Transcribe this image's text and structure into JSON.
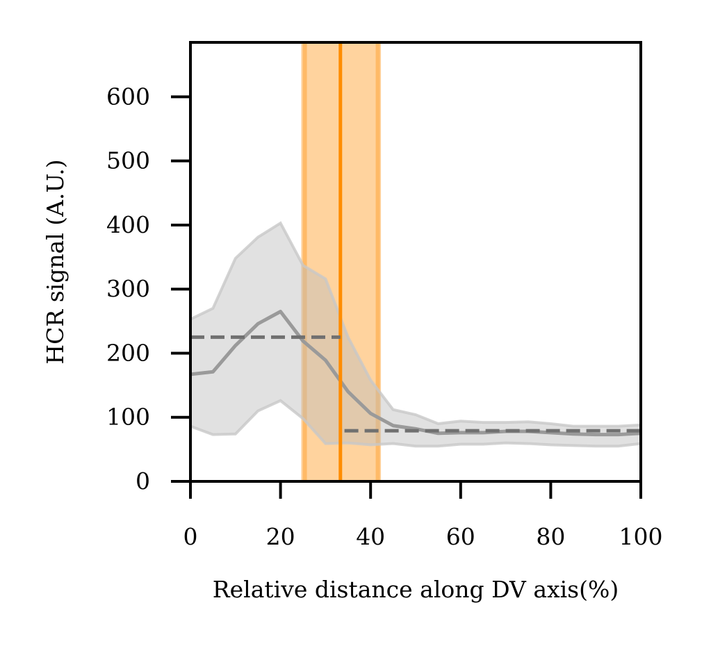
{
  "chart_data": {
    "type": "line",
    "title": "",
    "xlabel": "Relative distance along DV axis(%)",
    "ylabel": "HCR signal (A.U.)",
    "xlim": [
      0,
      100
    ],
    "ylim": [
      0,
      685
    ],
    "xticks": [
      0,
      20,
      40,
      60,
      80,
      100
    ],
    "yticks": [
      0,
      100,
      200,
      300,
      400,
      500,
      600
    ],
    "grid": false,
    "series": [
      {
        "name": "mean",
        "color": "#9a9a9a",
        "x": [
          0,
          5,
          10,
          15,
          20,
          25,
          30,
          35,
          40,
          45,
          50,
          55,
          60,
          65,
          70,
          75,
          80,
          85,
          90,
          95,
          100
        ],
        "y": [
          167,
          171,
          212,
          246,
          265,
          219,
          189,
          140,
          106,
          87,
          82,
          75,
          76,
          76,
          78,
          78,
          76,
          74,
          73,
          73,
          75
        ],
        "upper": [
          253,
          270,
          348,
          381,
          403,
          337,
          316,
          225,
          158,
          112,
          104,
          90,
          94,
          92,
          92,
          93,
          90,
          86,
          86,
          86,
          88
        ],
        "lower": [
          86,
          73,
          74,
          110,
          126,
          98,
          59,
          60,
          57,
          59,
          55,
          55,
          58,
          58,
          60,
          59,
          57,
          56,
          55,
          55,
          59
        ]
      }
    ],
    "boundary": {
      "x": 33.3,
      "band": [
        24.6,
        42.3
      ],
      "inner_edges": [
        25.4,
        41.6
      ],
      "color": "#ff8c00"
    },
    "reference_lines": [
      {
        "name": "mean-before-boundary",
        "x_start": 0,
        "x_end": 33.3,
        "y": 225,
        "style": "dashed",
        "color": "#707070"
      },
      {
        "name": "mean-after-boundary",
        "x_start": 34.2,
        "x_end": 100,
        "y": 79,
        "style": "dashed",
        "color": "#707070"
      }
    ]
  }
}
